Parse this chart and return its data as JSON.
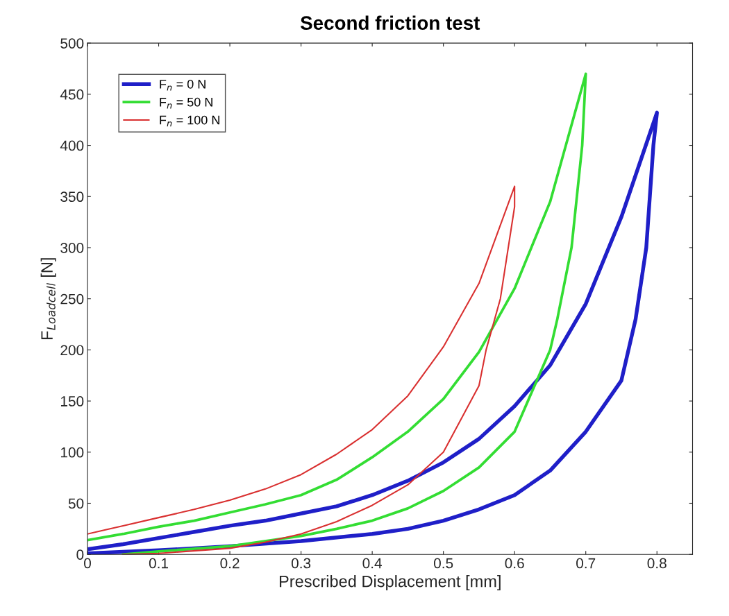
{
  "chart_data": {
    "type": "line",
    "title": "Second friction test",
    "xlabel": "Prescribed Displacement [mm]",
    "ylabel": "F$_{Loadcell}$ [N]",
    "xlim": [
      0,
      0.85
    ],
    "xticks": [
      0,
      0.1,
      0.2,
      0.3,
      0.4,
      0.5,
      0.6,
      0.7,
      0.8
    ],
    "ylim": [
      0,
      500
    ],
    "yticks": [
      0,
      50,
      100,
      150,
      200,
      250,
      300,
      350,
      400,
      450,
      500
    ],
    "grid": false,
    "legend": "top left",
    "marker": "none",
    "line_style": "solid",
    "series": [
      {
        "name": "F$_{n}$ = 0 N",
        "color": "#1f1fc8",
        "x": [
          0,
          0.05,
          0.1,
          0.15,
          0.2,
          0.25,
          0.3,
          0.35,
          0.4,
          0.45,
          0.5,
          0.55,
          0.6,
          0.65,
          0.7,
          0.75,
          0.8,
          0.795,
          0.785,
          0.77,
          0.75,
          0.7,
          0.65,
          0.6,
          0.55,
          0.5,
          0.45,
          0.4,
          0.3,
          0.2,
          0.1,
          0
        ],
        "values": [
          5,
          10,
          16,
          22,
          28,
          33,
          40,
          47,
          58,
          72,
          90,
          113,
          145,
          185,
          245,
          330,
          432,
          400,
          300,
          230,
          170,
          120,
          82,
          58,
          44,
          33,
          25,
          20,
          13,
          8,
          4,
          1
        ]
      },
      {
        "name": "F$_{n}$ = 50 N",
        "color": "#33dd33",
        "x": [
          0,
          0.05,
          0.1,
          0.15,
          0.2,
          0.25,
          0.3,
          0.35,
          0.4,
          0.45,
          0.5,
          0.55,
          0.6,
          0.65,
          0.7,
          0.695,
          0.68,
          0.66,
          0.65,
          0.6,
          0.55,
          0.5,
          0.45,
          0.4,
          0.35,
          0.3,
          0.2,
          0.1,
          0.05
        ],
        "values": [
          14,
          20,
          27,
          33,
          41,
          49,
          58,
          73,
          95,
          120,
          152,
          198,
          260,
          345,
          470,
          400,
          300,
          230,
          200,
          120,
          85,
          62,
          45,
          33,
          25,
          18,
          8,
          3,
          0
        ]
      },
      {
        "name": "F$_{n}$ = 100 N",
        "color": "#d93030",
        "x": [
          0,
          0.05,
          0.1,
          0.15,
          0.2,
          0.25,
          0.3,
          0.35,
          0.4,
          0.45,
          0.5,
          0.55,
          0.6,
          0.6,
          0.58,
          0.56,
          0.55,
          0.5,
          0.45,
          0.4,
          0.35,
          0.3,
          0.25,
          0.2,
          0.1,
          0.05
        ],
        "values": [
          20,
          28,
          36,
          44,
          53,
          64,
          78,
          98,
          122,
          155,
          203,
          265,
          360,
          340,
          250,
          200,
          165,
          100,
          68,
          48,
          32,
          20,
          12,
          6,
          1,
          0
        ]
      }
    ]
  }
}
